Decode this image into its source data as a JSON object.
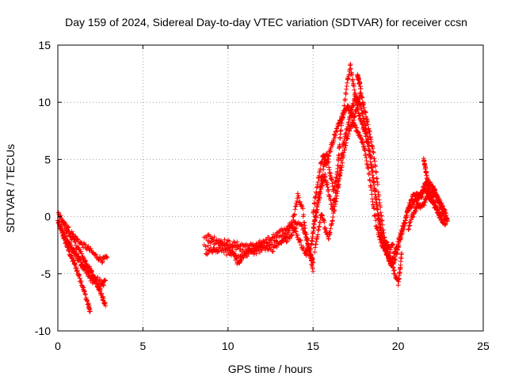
{
  "chart_data": {
    "type": "scatter",
    "title": "Day 159 of 2024, Sidereal Day-to-day VTEC variation (SDTVAR) for receiver ccsn",
    "xlabel": "GPS time / hours",
    "ylabel": "SDTVAR / TECUs",
    "xlim": [
      0,
      25
    ],
    "ylim": [
      -10,
      15
    ],
    "xticks": [
      0,
      5,
      10,
      15,
      20,
      25
    ],
    "yticks": [
      -10,
      -5,
      0,
      5,
      10,
      15
    ],
    "grid": true,
    "marker": "+",
    "series": [
      {
        "name": "SDTVAR",
        "color": "#ff0000",
        "tracks": [
          [
            [
              0.0,
              -0.4
            ],
            [
              0.2,
              -1.2
            ],
            [
              0.4,
              -2.0
            ],
            [
              0.6,
              -2.8
            ],
            [
              0.8,
              -3.6
            ],
            [
              1.0,
              -4.2
            ],
            [
              1.2,
              -5.0
            ],
            [
              1.4,
              -5.8
            ],
            [
              1.6,
              -6.8
            ],
            [
              1.8,
              -7.8
            ],
            [
              1.9,
              -8.3
            ]
          ],
          [
            [
              0.05,
              0.2
            ],
            [
              0.3,
              -0.6
            ],
            [
              0.6,
              -1.4
            ],
            [
              0.9,
              -2.0
            ],
            [
              1.2,
              -2.8
            ],
            [
              1.5,
              -3.6
            ],
            [
              1.8,
              -4.4
            ],
            [
              2.1,
              -5.2
            ],
            [
              2.4,
              -6.2
            ],
            [
              2.6,
              -7.0
            ],
            [
              2.8,
              -7.8
            ]
          ],
          [
            [
              0.1,
              -0.8
            ],
            [
              0.4,
              -1.6
            ],
            [
              0.7,
              -2.4
            ],
            [
              1.0,
              -3.2
            ],
            [
              1.3,
              -4.0
            ],
            [
              1.6,
              -4.8
            ],
            [
              1.9,
              -5.4
            ],
            [
              2.2,
              -5.8
            ],
            [
              2.5,
              -6.2
            ],
            [
              2.8,
              -5.6
            ]
          ],
          [
            [
              0.2,
              0.0
            ],
            [
              0.6,
              -1.0
            ],
            [
              1.0,
              -1.8
            ],
            [
              1.4,
              -2.4
            ],
            [
              1.8,
              -2.8
            ],
            [
              2.2,
              -3.4
            ],
            [
              2.6,
              -3.8
            ],
            [
              2.9,
              -3.6
            ]
          ],
          [
            [
              0.3,
              -1.6
            ],
            [
              0.7,
              -2.6
            ],
            [
              1.1,
              -3.4
            ],
            [
              1.5,
              -4.2
            ],
            [
              1.9,
              -4.8
            ],
            [
              2.3,
              -5.4
            ],
            [
              2.7,
              -6.0
            ]
          ],
          [
            [
              8.6,
              -1.6
            ],
            [
              9.2,
              -1.9
            ],
            [
              9.8,
              -2.2
            ],
            [
              10.4,
              -2.4
            ],
            [
              11.0,
              -2.5
            ],
            [
              11.6,
              -2.6
            ],
            [
              12.2,
              -2.4
            ],
            [
              12.8,
              -1.9
            ],
            [
              13.4,
              -1.3
            ],
            [
              13.9,
              -0.4
            ],
            [
              14.3,
              -0.8
            ],
            [
              14.6,
              -1.6
            ],
            [
              14.8,
              -3.0
            ],
            [
              15.0,
              -4.8
            ]
          ],
          [
            [
              8.6,
              -2.6
            ],
            [
              9.3,
              -2.9
            ],
            [
              10.0,
              -3.2
            ],
            [
              10.6,
              -3.5
            ],
            [
              11.2,
              -3.3
            ],
            [
              11.8,
              -3.0
            ],
            [
              12.4,
              -2.7
            ],
            [
              13.0,
              -2.2
            ],
            [
              13.5,
              -1.6
            ],
            [
              13.9,
              0.2
            ],
            [
              14.1,
              1.8
            ],
            [
              14.4,
              0.5
            ],
            [
              14.6,
              -2.0
            ],
            [
              14.9,
              -3.8
            ]
          ],
          [
            [
              8.7,
              -3.3
            ],
            [
              9.2,
              -2.9
            ],
            [
              9.8,
              -2.6
            ],
            [
              10.3,
              -3.1
            ],
            [
              10.6,
              -4.2
            ],
            [
              10.8,
              -3.6
            ],
            [
              11.3,
              -3.0
            ],
            [
              11.9,
              -2.6
            ],
            [
              12.6,
              -2.9
            ],
            [
              13.1,
              -2.4
            ],
            [
              13.6,
              -1.8
            ],
            [
              14.0,
              -1.0
            ]
          ],
          [
            [
              8.8,
              -2.1
            ],
            [
              9.5,
              -2.3
            ],
            [
              10.2,
              -2.6
            ],
            [
              10.8,
              -2.9
            ],
            [
              11.4,
              -2.7
            ],
            [
              12.0,
              -2.2
            ],
            [
              12.6,
              -1.8
            ],
            [
              13.2,
              -1.2
            ],
            [
              13.7,
              -0.6
            ],
            [
              14.0,
              -1.4
            ],
            [
              14.3,
              -2.4
            ],
            [
              14.6,
              -3.4
            ]
          ],
          [
            [
              14.8,
              -3.6
            ],
            [
              15.0,
              -1.2
            ],
            [
              15.2,
              0.6
            ],
            [
              15.4,
              2.4
            ],
            [
              15.6,
              4.0
            ],
            [
              15.8,
              5.6
            ],
            [
              16.0,
              3.8
            ],
            [
              16.2,
              2.4
            ],
            [
              16.4,
              3.6
            ],
            [
              16.5,
              5.2
            ],
            [
              16.6,
              7.0
            ],
            [
              16.8,
              9.4
            ],
            [
              17.0,
              11.6
            ],
            [
              17.2,
              13.2
            ],
            [
              17.4,
              11.2
            ],
            [
              17.6,
              9.6
            ],
            [
              17.8,
              8.4
            ],
            [
              18.0,
              7.6
            ],
            [
              18.2,
              6.4
            ],
            [
              18.4,
              4.6
            ],
            [
              18.6,
              2.4
            ],
            [
              18.8,
              0.4
            ],
            [
              19.0,
              -1.2
            ],
            [
              19.2,
              -2.6
            ],
            [
              19.4,
              -3.6
            ],
            [
              19.6,
              -4.2
            ],
            [
              19.8,
              -3.8
            ],
            [
              20.0,
              -2.6
            ],
            [
              20.2,
              -1.6
            ],
            [
              20.4,
              -0.4
            ],
            [
              20.6,
              0.6
            ],
            [
              20.8,
              1.0
            ],
            [
              21.0,
              1.4
            ],
            [
              21.2,
              1.6
            ],
            [
              21.4,
              2.2
            ],
            [
              21.6,
              2.8
            ],
            [
              21.8,
              3.0
            ],
            [
              22.0,
              2.6
            ],
            [
              22.2,
              2.0
            ],
            [
              22.4,
              1.2
            ],
            [
              22.6,
              0.4
            ],
            [
              22.8,
              -0.2
            ]
          ],
          [
            [
              14.9,
              -2.4
            ],
            [
              15.1,
              -0.4
            ],
            [
              15.3,
              1.2
            ],
            [
              15.5,
              2.6
            ],
            [
              15.7,
              3.6
            ],
            [
              15.9,
              2.2
            ],
            [
              16.1,
              0.8
            ],
            [
              16.3,
              1.8
            ],
            [
              16.5,
              3.4
            ],
            [
              16.7,
              5.6
            ],
            [
              16.9,
              7.2
            ],
            [
              17.1,
              8.4
            ],
            [
              17.3,
              9.6
            ],
            [
              17.5,
              10.4
            ],
            [
              17.7,
              10.0
            ],
            [
              17.9,
              9.0
            ],
            [
              18.1,
              7.8
            ],
            [
              18.3,
              6.2
            ],
            [
              18.5,
              4.0
            ],
            [
              18.7,
              1.6
            ],
            [
              18.9,
              -0.8
            ],
            [
              19.1,
              -2.2
            ],
            [
              19.3,
              -3.2
            ],
            [
              19.5,
              -4.0
            ],
            [
              19.7,
              -3.6
            ],
            [
              19.9,
              -2.8
            ],
            [
              20.1,
              -1.8
            ],
            [
              20.3,
              -0.8
            ],
            [
              20.5,
              0.2
            ],
            [
              20.7,
              1.2
            ],
            [
              20.9,
              1.8
            ],
            [
              21.1,
              2.0
            ],
            [
              21.3,
              1.6
            ],
            [
              21.5,
              2.4
            ],
            [
              21.7,
              2.2
            ],
            [
              21.9,
              1.6
            ],
            [
              22.1,
              1.2
            ],
            [
              22.3,
              0.6
            ],
            [
              22.5,
              0.0
            ]
          ],
          [
            [
              15.0,
              0.4
            ],
            [
              15.2,
              2.2
            ],
            [
              15.4,
              4.2
            ],
            [
              15.6,
              5.4
            ],
            [
              15.8,
              4.6
            ],
            [
              16.0,
              5.8
            ],
            [
              16.2,
              6.8
            ],
            [
              16.4,
              7.6
            ],
            [
              16.6,
              8.4
            ],
            [
              16.8,
              9.0
            ],
            [
              17.0,
              9.6
            ],
            [
              17.2,
              9.2
            ],
            [
              17.4,
              8.6
            ],
            [
              17.6,
              9.8
            ],
            [
              17.8,
              10.8
            ],
            [
              18.0,
              9.6
            ],
            [
              18.2,
              8.2
            ],
            [
              18.4,
              6.8
            ],
            [
              18.6,
              5.0
            ],
            [
              18.8,
              2.6
            ],
            [
              19.0,
              0.2
            ],
            [
              19.2,
              -2.0
            ],
            [
              19.4,
              -3.2
            ],
            [
              19.6,
              -4.0
            ],
            [
              19.8,
              -5.0
            ],
            [
              20.0,
              -5.8
            ],
            [
              20.1,
              -4.8
            ],
            [
              20.2,
              -3.2
            ]
          ],
          [
            [
              15.1,
              -3.0
            ],
            [
              15.3,
              -1.2
            ],
            [
              15.5,
              0.4
            ],
            [
              15.7,
              -1.0
            ],
            [
              15.9,
              -2.0
            ],
            [
              16.1,
              -0.6
            ],
            [
              16.3,
              1.0
            ],
            [
              16.5,
              2.8
            ],
            [
              16.7,
              4.6
            ],
            [
              16.9,
              6.2
            ],
            [
              17.1,
              7.4
            ],
            [
              17.3,
              8.2
            ],
            [
              17.5,
              7.8
            ],
            [
              17.7,
              7.2
            ],
            [
              17.9,
              6.6
            ],
            [
              18.1,
              5.4
            ],
            [
              18.3,
              3.6
            ],
            [
              18.5,
              1.4
            ],
            [
              18.7,
              -0.6
            ],
            [
              18.9,
              -1.8
            ],
            [
              19.1,
              -2.6
            ],
            [
              19.3,
              -2.2
            ],
            [
              19.5,
              -3.0
            ],
            [
              19.7,
              -2.4
            ]
          ],
          [
            [
              21.5,
              5.0
            ],
            [
              21.6,
              4.2
            ],
            [
              21.7,
              3.4
            ],
            [
              21.8,
              2.6
            ],
            [
              21.9,
              2.0
            ],
            [
              22.0,
              1.8
            ],
            [
              22.1,
              2.4
            ],
            [
              22.2,
              2.0
            ],
            [
              22.4,
              1.4
            ],
            [
              22.6,
              0.8
            ],
            [
              22.8,
              0.2
            ],
            [
              22.9,
              -0.4
            ]
          ],
          [
            [
              20.6,
              -1.0
            ],
            [
              20.8,
              0.0
            ],
            [
              21.0,
              0.6
            ],
            [
              21.2,
              1.0
            ],
            [
              21.4,
              0.8
            ],
            [
              21.6,
              1.4
            ],
            [
              21.8,
              1.8
            ],
            [
              22.0,
              1.4
            ],
            [
              22.2,
              0.8
            ],
            [
              22.4,
              0.2
            ],
            [
              22.6,
              -0.4
            ],
            [
              22.8,
              -0.6
            ]
          ],
          [
            [
              17.6,
              12.4
            ],
            [
              17.7,
              11.8
            ],
            [
              17.8,
              11.2
            ]
          ],
          [
            [
              14.6,
              -3.2
            ],
            [
              14.7,
              -2.6
            ],
            [
              14.9,
              -3.6
            ],
            [
              15.0,
              -4.0
            ]
          ]
        ]
      }
    ]
  }
}
